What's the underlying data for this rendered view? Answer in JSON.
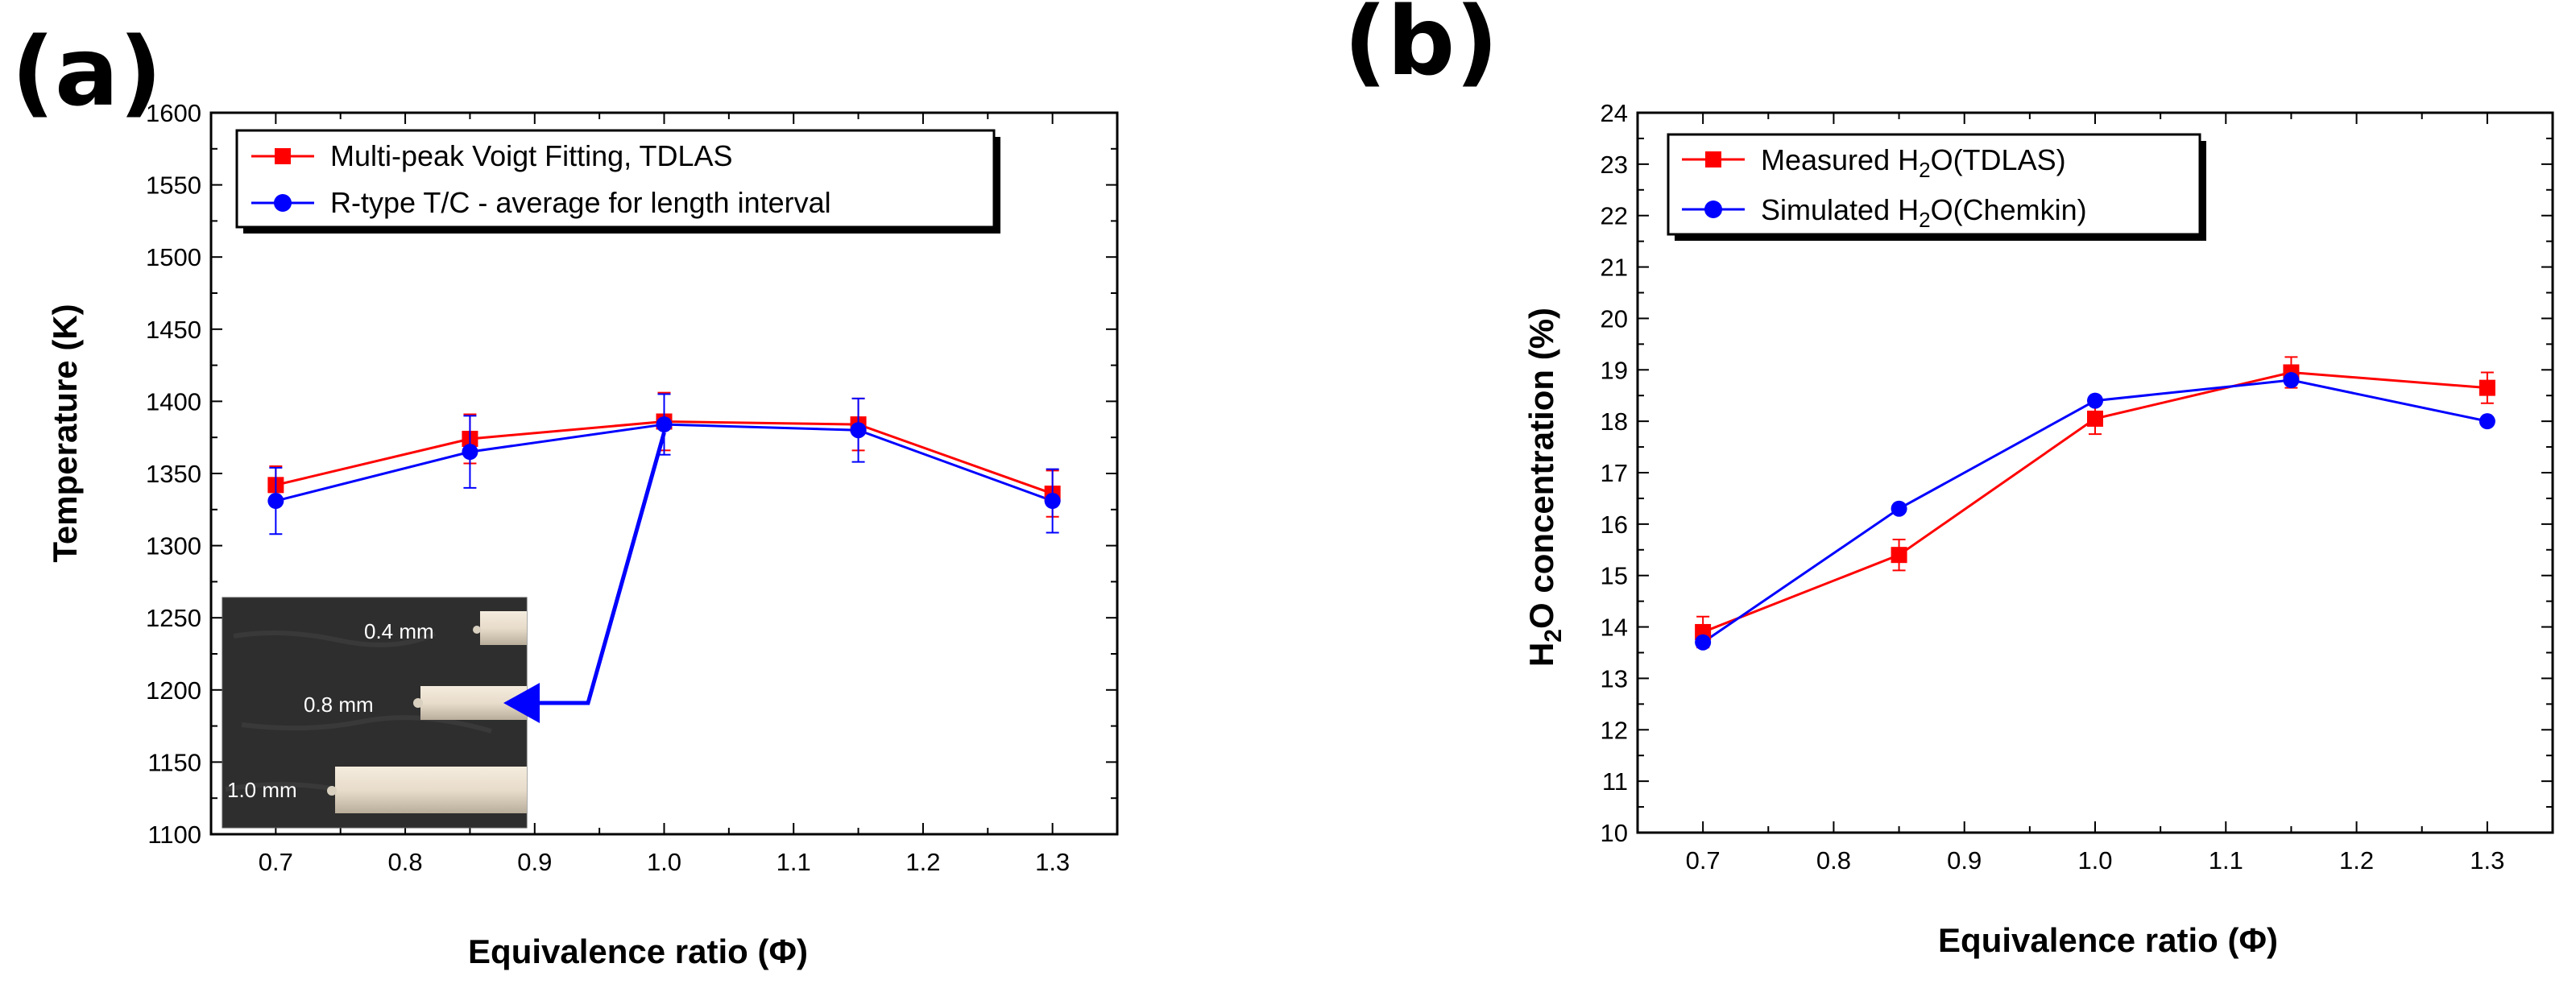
{
  "colors": {
    "measured": "#ff0000",
    "simulated": "#0000ff",
    "axis": "#000000"
  },
  "chart_data": [
    {
      "panel_label": "(a)",
      "type": "line",
      "xlabel": "Equivalence ratio (Φ)",
      "ylabel": "Temperature (K)",
      "xlim": [
        0.65,
        1.35
      ],
      "ylim": [
        1100,
        1600
      ],
      "x_ticks": [
        "0.7",
        "0.8",
        "0.9",
        "1.0",
        "1.1",
        "1.2",
        "1.3"
      ],
      "y_ticks": [
        "1100",
        "1150",
        "1200",
        "1250",
        "1300",
        "1350",
        "1400",
        "1450",
        "1500",
        "1550",
        "1600"
      ],
      "legend_position": "top-left",
      "series": [
        {
          "name": "Multi-peak Voigt Fitting, TDLAS",
          "marker": "square",
          "x": [
            0.7,
            0.85,
            1.0,
            1.15,
            1.3
          ],
          "y": [
            1342,
            1374,
            1386,
            1384,
            1336
          ],
          "err": [
            13,
            17,
            20,
            18,
            16
          ]
        },
        {
          "name": "R-type T/C - average for length interval",
          "marker": "circle",
          "x": [
            0.7,
            0.85,
            1.0,
            1.15,
            1.3
          ],
          "y": [
            1331,
            1365,
            1384,
            1380,
            1331
          ],
          "err": [
            23,
            25,
            21,
            22,
            22
          ]
        }
      ],
      "inset": {
        "labels": [
          "0.4 mm",
          "0.8 mm",
          "1.0 mm"
        ],
        "arrow_target_x": 1.0,
        "arrow_target_y": 1384
      }
    },
    {
      "panel_label": "(b)",
      "type": "line",
      "xlabel": "Equivalence ratio (Φ)",
      "ylabel": "H2O concentration (%)",
      "xlim": [
        0.65,
        1.35
      ],
      "ylim": [
        10,
        24
      ],
      "x_ticks": [
        "0.7",
        "0.8",
        "0.9",
        "1.0",
        "1.1",
        "1.2",
        "1.3"
      ],
      "y_ticks": [
        "10",
        "11",
        "12",
        "13",
        "14",
        "15",
        "16",
        "17",
        "18",
        "19",
        "20",
        "21",
        "22",
        "23",
        "24"
      ],
      "legend_position": "top-left",
      "series": [
        {
          "name": "Measured H2O(TDLAS)",
          "marker": "square",
          "x": [
            0.7,
            0.85,
            1.0,
            1.15,
            1.3
          ],
          "y": [
            13.9,
            15.4,
            18.05,
            18.95,
            18.65
          ],
          "err": [
            0.3,
            0.3,
            0.3,
            0.3,
            0.3
          ]
        },
        {
          "name": "Simulated H2O(Chemkin)",
          "marker": "circle",
          "x": [
            0.7,
            0.85,
            1.0,
            1.15,
            1.3
          ],
          "y": [
            13.7,
            16.3,
            18.4,
            18.8,
            18.0
          ],
          "err": [
            0,
            0,
            0,
            0,
            0
          ]
        }
      ]
    }
  ]
}
